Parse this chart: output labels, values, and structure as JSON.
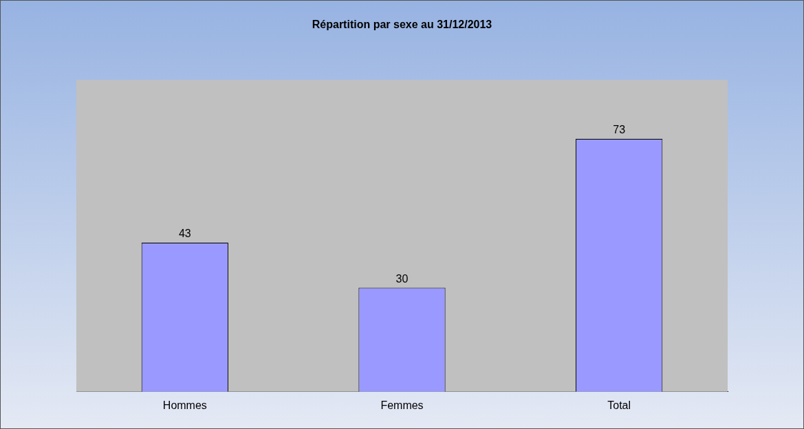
{
  "chart_data": {
    "type": "bar",
    "title": "Répartition par sexe au 31/12/2013",
    "categories": [
      "Hommes",
      "Femmes",
      "Total"
    ],
    "values": [
      43,
      30,
      73
    ],
    "color": "#9999ff",
    "data_labels": true,
    "legend": false,
    "grid": false
  }
}
